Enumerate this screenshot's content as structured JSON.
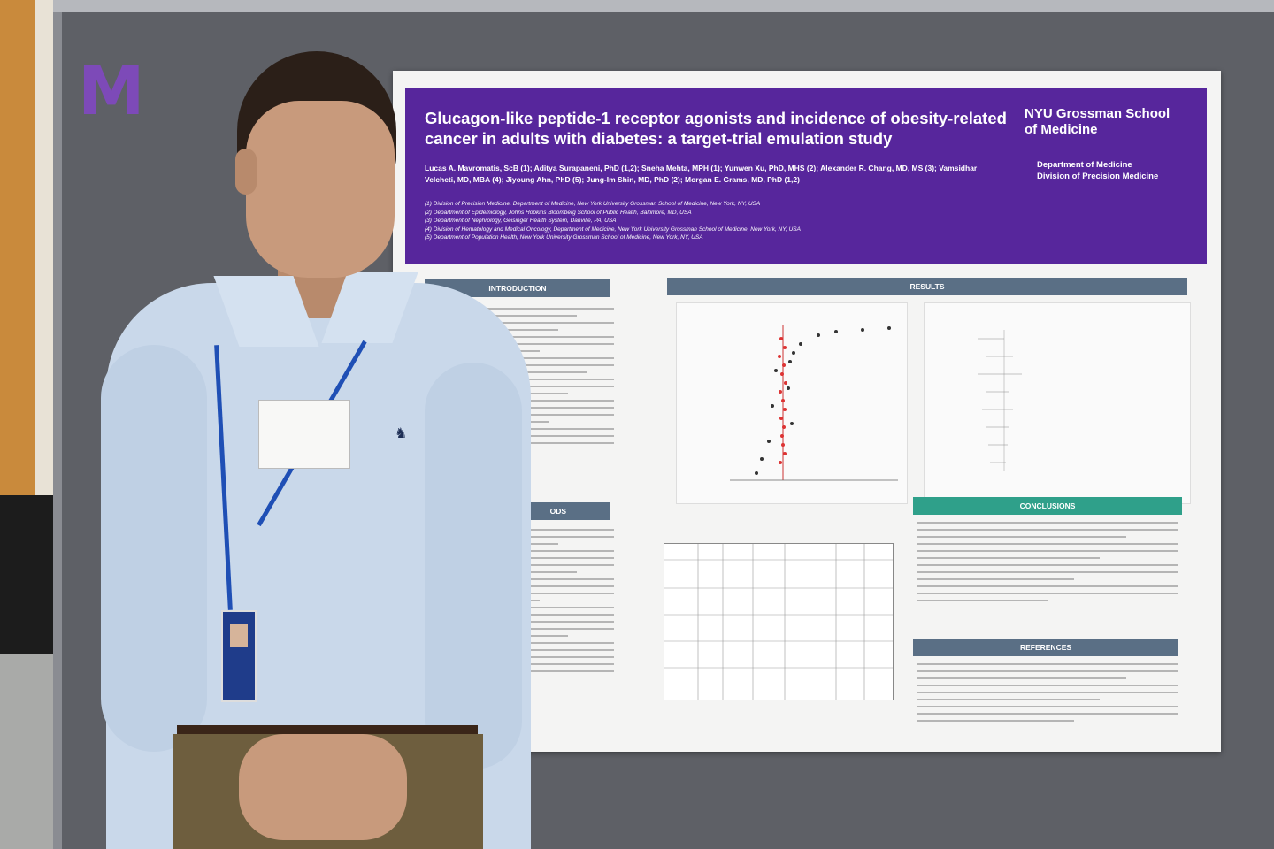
{
  "poster": {
    "title": "Glucagon-like peptide-1 receptor agonists and incidence of obesity-related cancer in adults with diabetes: a target-trial emulation study",
    "authors": "Lucas A. Mavromatis, ScB (1); Aditya Surapaneni, PhD (1,2); Sneha Mehta, MPH (1); Yunwen Xu, PhD, MHS (2); Alexander R. Chang, MD, MS (3); Vamsidhar Velcheti, MD, MBA (4); Jiyoung Ahn, PhD (5); Jung-Im Shin, MD, PhD (2); Morgan E. Grams, MD, PhD (1,2)",
    "affiliations": [
      "(1) Division of Precision Medicine, Department of Medicine, New York University Grossman School of Medicine, New York, NY, USA",
      "(2) Department of Epidemiology, Johns Hopkins Bloomberg School of Public Health, Baltimore, MD, USA",
      "(3) Department of Nephrology, Geisinger Health System, Danville, PA, USA",
      "(4) Division of Hematology and Medical Oncology, Department of Medicine, New York University Grossman School of Medicine, New York, NY, USA",
      "(5) Department of Population Health, New York University Grossman School of Medicine, New York, NY, USA"
    ],
    "institution": "NYU Grossman School of Medicine",
    "department": "Department of Medicine",
    "division": "Division of Precision Medicine",
    "sections": {
      "introduction": "INTRODUCTION",
      "methods": "ODS",
      "results": "RESULTS",
      "conclusions": "CONCLUSIONS",
      "references": "REFERENCES"
    }
  },
  "wall": {
    "logo_letter": "M"
  },
  "colors": {
    "purple": "#57269c",
    "slate": "#5a6f85",
    "teal": "#2fa08a"
  }
}
